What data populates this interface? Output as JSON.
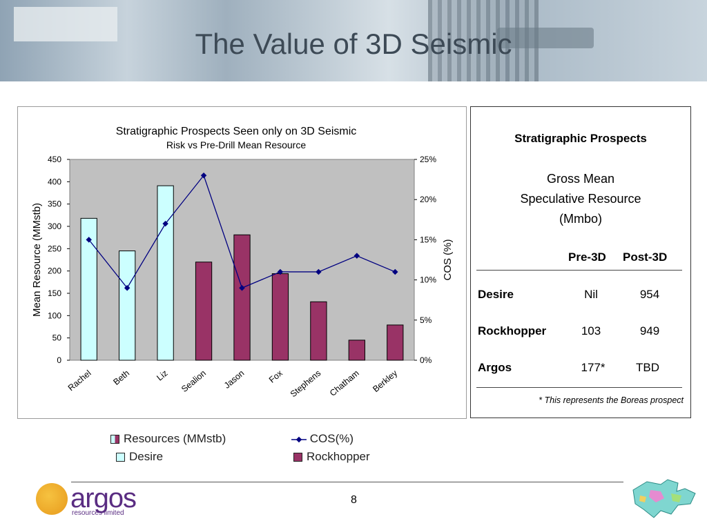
{
  "slide": {
    "title": "The Value of 3D Seismic",
    "page_number": "8"
  },
  "chart_data": {
    "type": "bar",
    "title": "Stratigraphic Prospects Seen only on 3D Seismic",
    "subtitle": "Risk vs Pre-Drill Mean Resource",
    "ylabel": "Mean Resource (MMstb)",
    "y2label": "COS (%)",
    "ylim": [
      0,
      450
    ],
    "y2lim": [
      0,
      25
    ],
    "yticks": [
      "0",
      "50",
      "100",
      "150",
      "200",
      "250",
      "300",
      "350",
      "400",
      "450"
    ],
    "y2ticks": [
      "0%",
      "5%",
      "10%",
      "15%",
      "20%",
      "25%"
    ],
    "categories": [
      "Rachel",
      "Beth",
      "Liz",
      "Sealion",
      "Jason",
      "Fox",
      "Stephens",
      "Chatham",
      "Berkley"
    ],
    "series": [
      {
        "name": "Resources (MMstb)",
        "values": [
          318,
          245,
          391,
          220,
          281,
          194,
          131,
          45,
          79
        ],
        "groups": [
          "Desire",
          "Desire",
          "Desire",
          "Rockhopper",
          "Rockhopper",
          "Rockhopper",
          "Rockhopper",
          "Rockhopper",
          "Rockhopper"
        ]
      },
      {
        "name": "COS(%)",
        "axis": "right",
        "values": [
          15,
          9,
          17,
          23,
          9,
          11,
          11,
          13,
          11
        ]
      }
    ],
    "grid": false,
    "colors": {
      "Desire": "#ccffff",
      "Rockhopper": "#993366",
      "line": "#000080",
      "plot_bg": "#c0c0c0"
    }
  },
  "legend": {
    "resources": "Resources (MMstb)",
    "cos": "COS(%)",
    "desire": "Desire",
    "rockhopper": "Rockhopper"
  },
  "table": {
    "title": "Stratigraphic Prospects",
    "sub1": "Gross Mean",
    "sub2": "Speculative Resource",
    "sub3": "(Mmbo)",
    "col_pre": "Pre-3D",
    "col_post": "Post-3D",
    "rows": [
      {
        "name": "Desire",
        "pre": "Nil",
        "post": "954"
      },
      {
        "name": "Rockhopper",
        "pre": "103",
        "post": "949"
      },
      {
        "name": "Argos",
        "pre": "177*",
        "post": "TBD"
      }
    ],
    "footnote": "* This represents the Boreas prospect"
  },
  "logo": {
    "name": "argos",
    "sub": "resources limited"
  }
}
